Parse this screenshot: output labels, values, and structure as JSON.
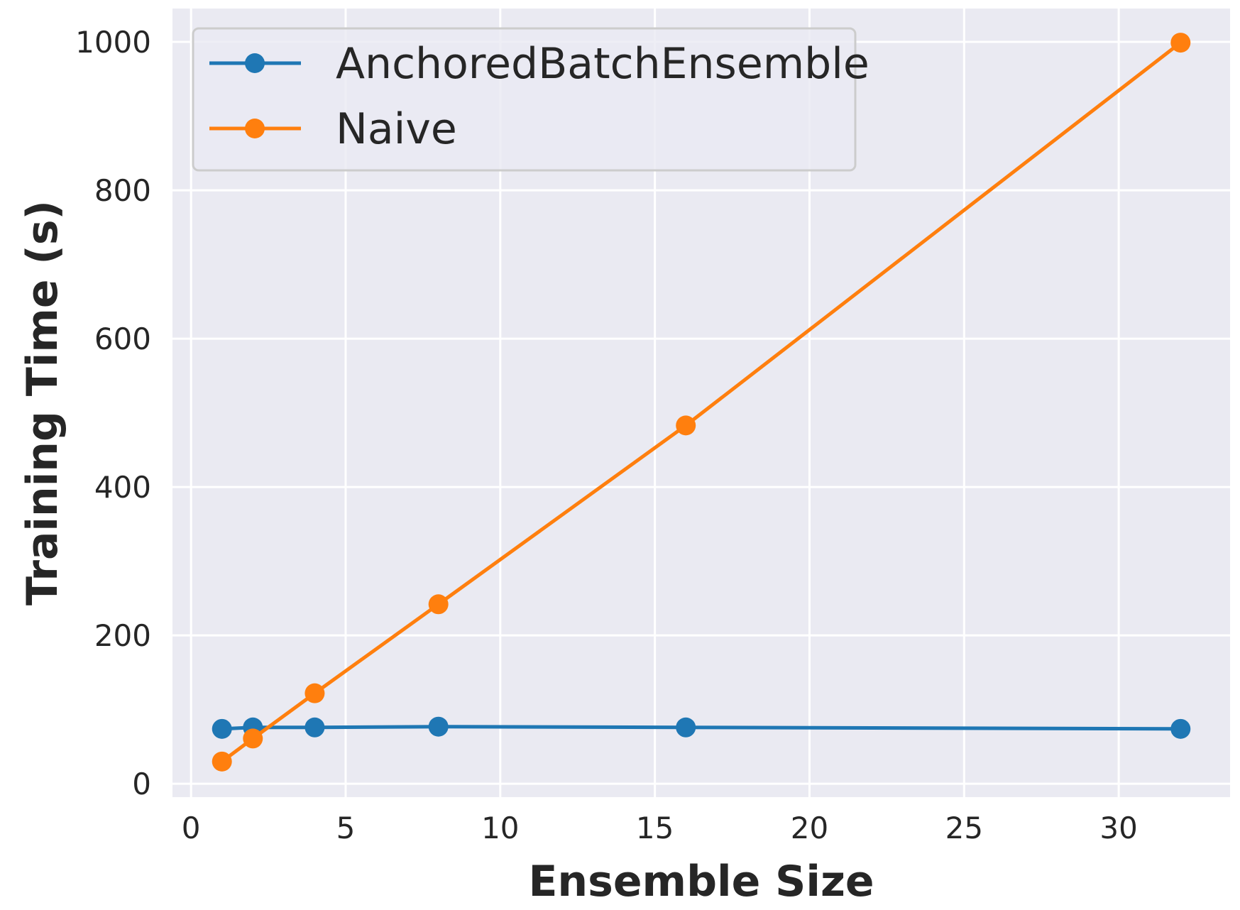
{
  "chart_data": {
    "type": "line",
    "title": "",
    "xlabel": "Ensemble Size",
    "ylabel": "Training Time (s)",
    "xlim": [
      -0.6,
      33.6
    ],
    "ylim": [
      -18,
      1045
    ],
    "xticks": [
      0,
      5,
      10,
      15,
      20,
      25,
      30
    ],
    "yticks": [
      0,
      200,
      400,
      600,
      800,
      1000
    ],
    "grid": true,
    "legend_position": "upper-left",
    "x": [
      1,
      2,
      4,
      8,
      16,
      32
    ],
    "series": [
      {
        "name": "AnchoredBatchEnsemble",
        "color": "#1f77b4",
        "marker": "circle",
        "values": [
          74,
          76,
          76,
          77,
          76,
          74
        ]
      },
      {
        "name": "Naive",
        "color": "#ff7f0e",
        "marker": "circle",
        "values": [
          30,
          61,
          122,
          242,
          483,
          999
        ]
      }
    ],
    "style": {
      "plot_background": "#eaeaf2",
      "grid_color": "#ffffff",
      "text_color": "#262626"
    }
  }
}
